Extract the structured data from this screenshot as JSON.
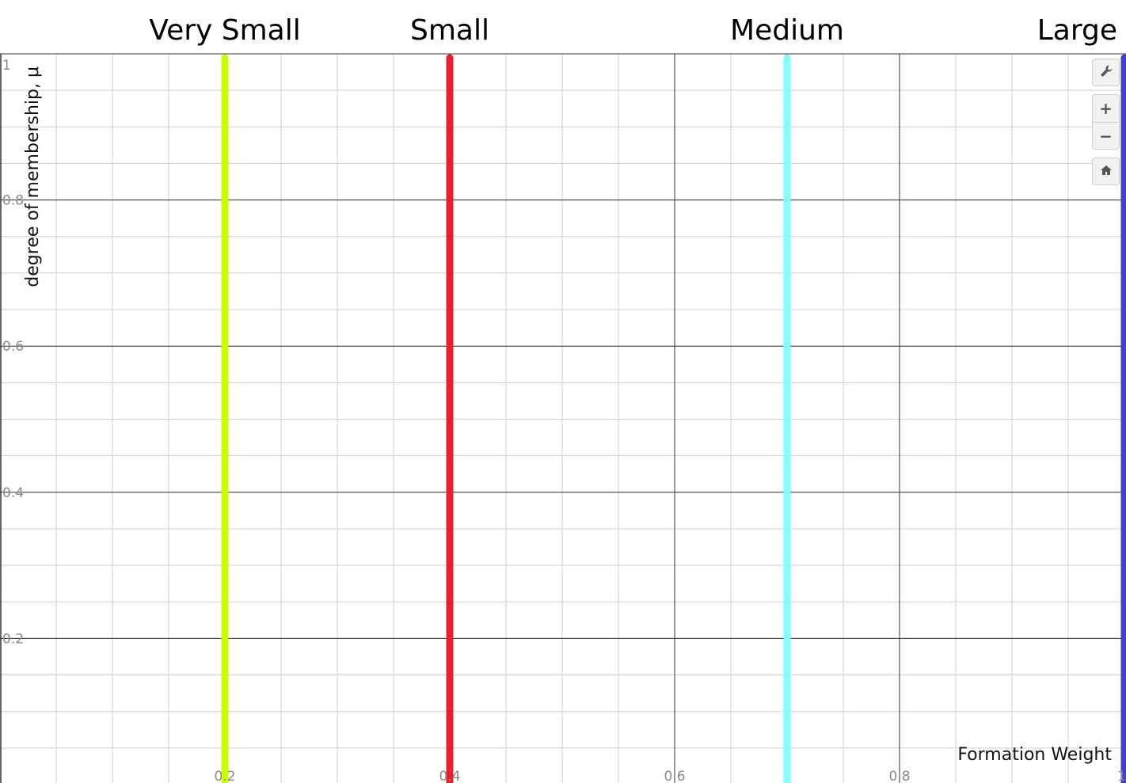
{
  "chart_data": {
    "type": "line",
    "title": "",
    "xlabel": "Formation Weight",
    "ylabel": "degree of membership, μ",
    "xlim": [
      0,
      1
    ],
    "ylim": [
      0,
      1
    ],
    "grid": true,
    "x_ticks": [
      {
        "value": 0.2,
        "label": "0.2"
      },
      {
        "value": 0.4,
        "label": "0.4"
      },
      {
        "value": 0.6,
        "label": "0.6"
      },
      {
        "value": 0.8,
        "label": "0.8"
      },
      {
        "value": 1.0,
        "label": "1"
      }
    ],
    "y_ticks": [
      {
        "value": 0.2,
        "label": "0.2"
      },
      {
        "value": 0.4,
        "label": "0.4"
      },
      {
        "value": 0.6,
        "label": "0.6"
      },
      {
        "value": 0.8,
        "label": "0.8"
      },
      {
        "value": 1.0,
        "label": "1"
      }
    ],
    "series": [
      {
        "name": "Very Small",
        "color": "#c8ff00",
        "x": [
          0.2,
          0.2
        ],
        "y": [
          0,
          1
        ]
      },
      {
        "name": "Small",
        "color": "#e8202b",
        "x": [
          0.4,
          0.4
        ],
        "y": [
          0,
          1
        ]
      },
      {
        "name": "Medium",
        "color": "#80ffff",
        "x": [
          0.7,
          0.7
        ],
        "y": [
          0,
          1
        ]
      },
      {
        "name": "Large",
        "color": "#4040d0",
        "x": [
          1.0,
          1.0
        ],
        "y": [
          0,
          1
        ]
      }
    ]
  },
  "toolbar": {
    "settings_icon": "wrench-icon",
    "zoom_in_icon": "plus-icon",
    "zoom_out_icon": "minus-icon",
    "home_icon": "home-icon"
  }
}
